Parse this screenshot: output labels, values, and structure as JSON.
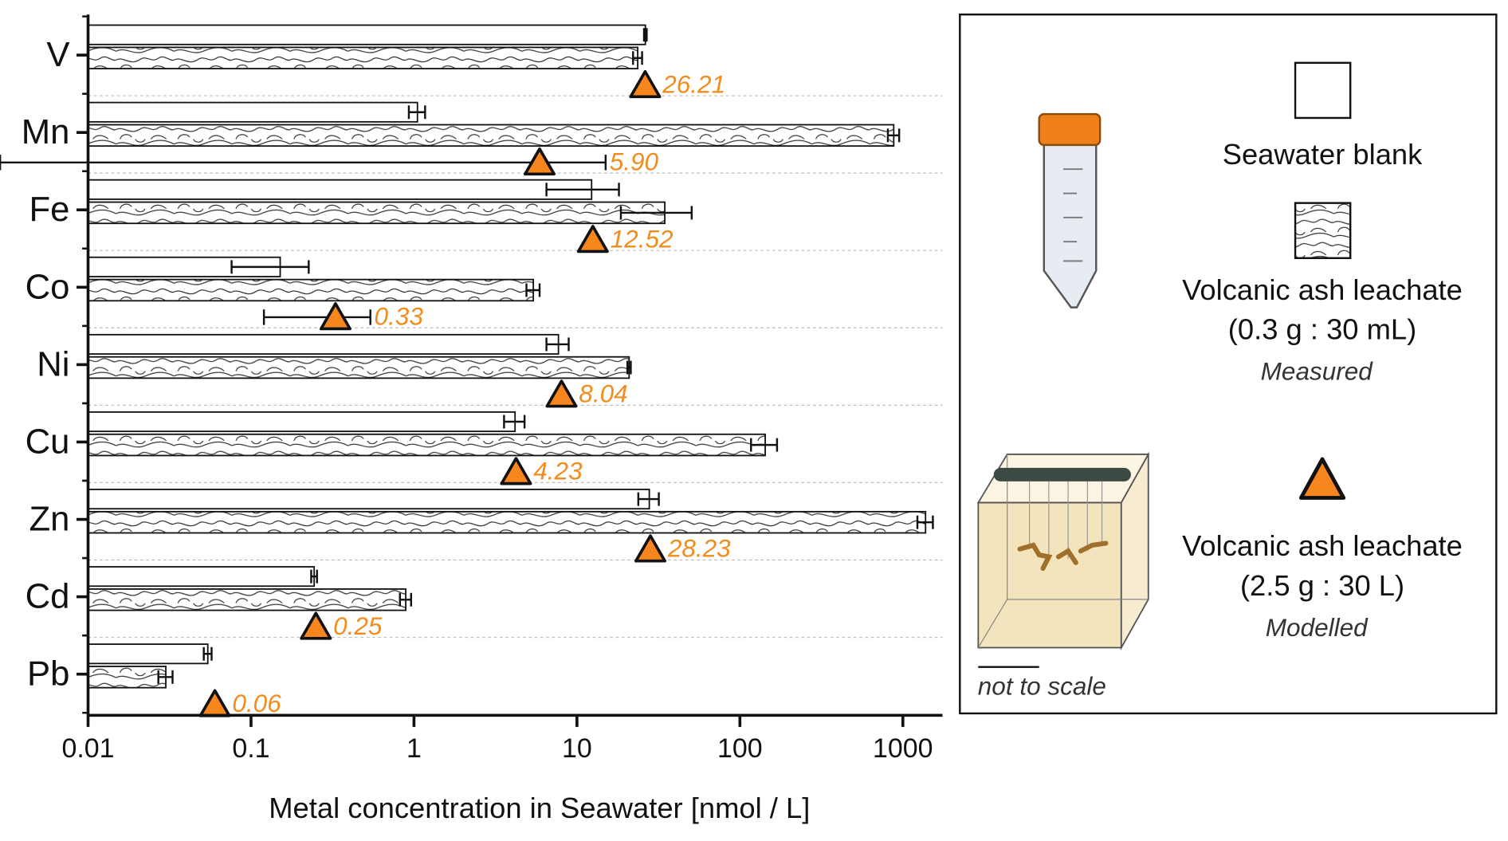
{
  "chart_data": {
    "type": "bar",
    "orientation": "horizontal",
    "xlabel": "Metal concentration in Seawater [nmol / L]",
    "xscale": "log",
    "xlim": [
      0.01,
      1750
    ],
    "xticks": [
      0.01,
      0.1,
      1,
      10,
      100,
      1000
    ],
    "categories": [
      "V",
      "Mn",
      "Fe",
      "Co",
      "Ni",
      "Cu",
      "Zn",
      "Cd",
      "Pb"
    ],
    "annotation": "not to scale",
    "series": [
      {
        "name": "Seawater blank",
        "color": "#ffffff",
        "mark": "bar",
        "values": [
          26.3,
          1.05,
          12.3,
          0.151,
          7.7,
          4.17,
          27.8,
          0.244,
          0.0543
        ],
        "errors": [
          0.5,
          0.12,
          5.8,
          0.075,
          1.2,
          0.6,
          4,
          0.01,
          0.003
        ]
      },
      {
        "name": "Volcanic ash leachate",
        "conditions": "(0.3 g : 30 mL)",
        "method": "Measured",
        "color": "#ffffff",
        "fill_pattern": "hatched",
        "mark": "bar",
        "values": [
          23.6,
          879,
          34.6,
          5.4,
          20.9,
          143,
          1378,
          0.89,
          0.03
        ],
        "errors": [
          1.5,
          70,
          16,
          0.5,
          0.5,
          26,
          150,
          0.07,
          0.003
        ]
      },
      {
        "name": "Volcanic ash leachate",
        "conditions": "(2.5 g : 30 L)",
        "method": "Modelled",
        "color": "#f7861e",
        "mark": "triangle",
        "values": [
          26.21,
          5.9,
          12.52,
          0.33,
          8.04,
          4.23,
          28.23,
          0.25,
          0.06
        ],
        "value_labels": [
          "26.21",
          "5.90",
          "12.52",
          "0.33",
          "8.04",
          "4.23",
          "28.23",
          "0.25",
          "0.06"
        ],
        "errors": [
          null,
          9.1,
          null,
          0.21,
          null,
          null,
          null,
          null,
          null
        ]
      }
    ]
  }
}
